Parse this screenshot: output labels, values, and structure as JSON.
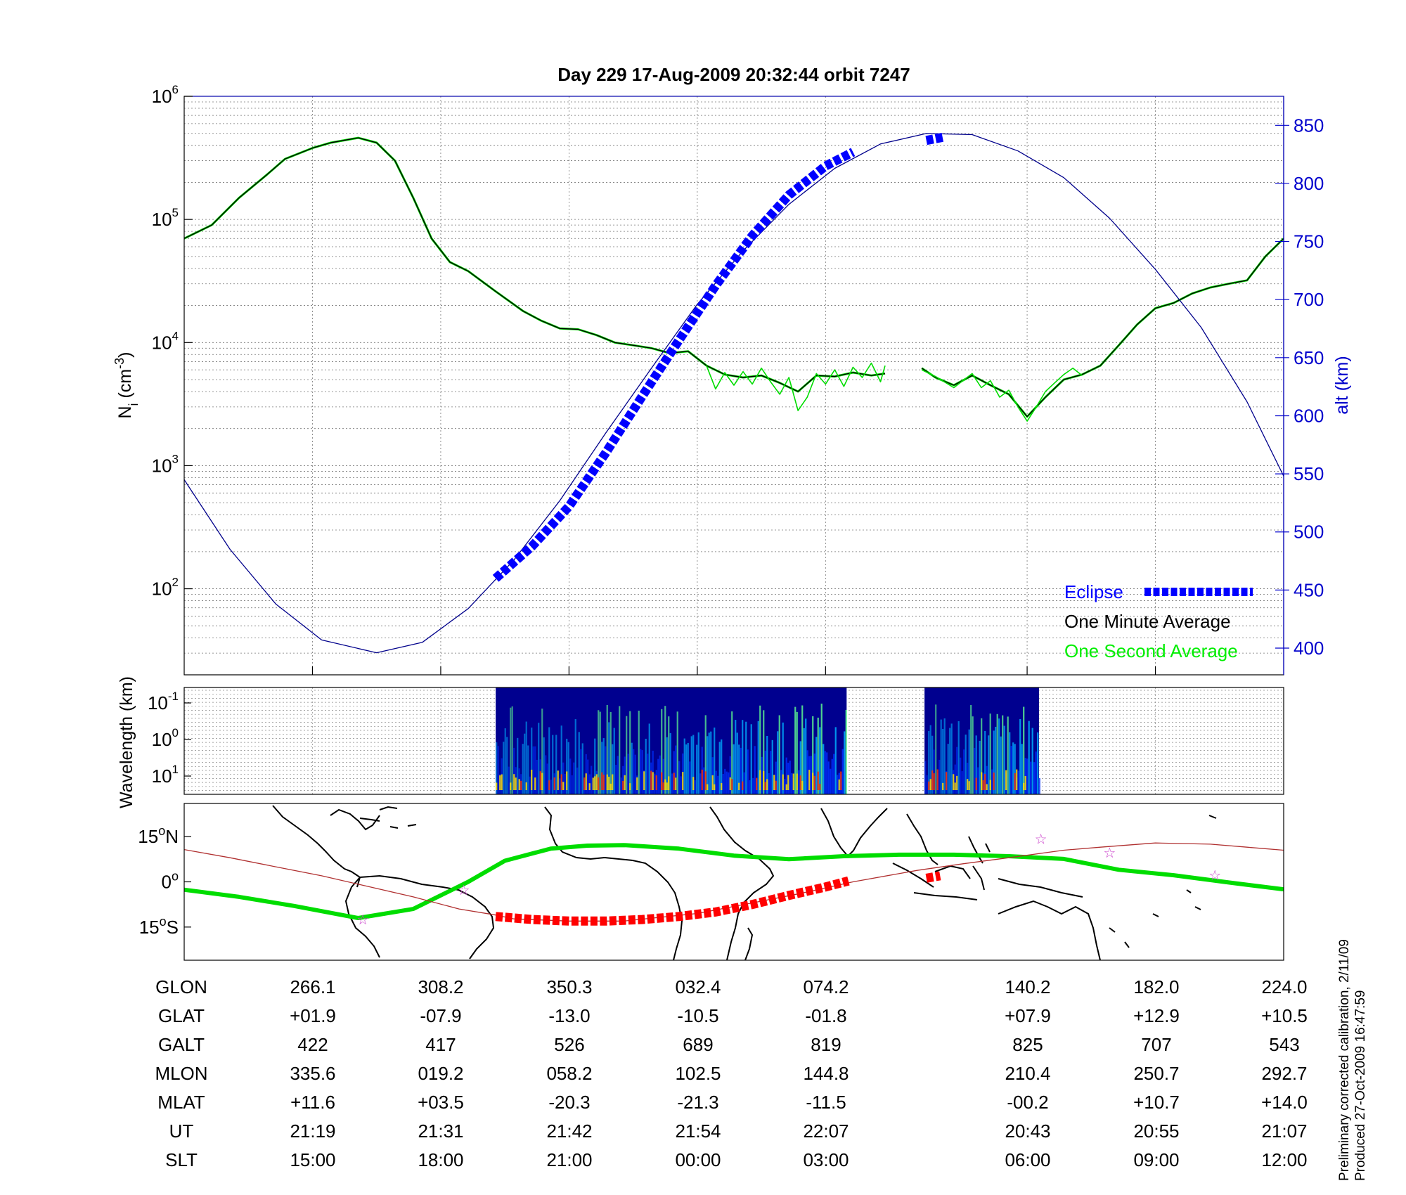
{
  "title": "Day 229  17-Aug-2009 20:32:44   orbit 7247",
  "side_note": {
    "line1": "Preliminary corrected calibration, 2/11/09",
    "line2": "Produced 27-Oct-2009 16:47:59"
  },
  "chart_data": [
    {
      "type": "line",
      "panel": "density",
      "ylabel_left": "N",
      "ylabel_left_sub": "i",
      "ylabel_left_unit": "(cm",
      "ylabel_left_unit_sup": "-3",
      "ylabel_left_close": ")",
      "ylabel_right": "alt (km)",
      "y_scale": "log",
      "ylim": [
        20,
        1000000
      ],
      "y_ticks": [
        {
          "value": 100,
          "base": "10",
          "exp": "2"
        },
        {
          "value": 1000,
          "base": "10",
          "exp": "3"
        },
        {
          "value": 10000,
          "base": "10",
          "exp": "4"
        },
        {
          "value": 100000,
          "base": "10",
          "exp": "5"
        },
        {
          "value": 1000000,
          "base": "10",
          "exp": "6"
        }
      ],
      "y2lim": [
        377,
        875
      ],
      "y2_ticks": [
        "400",
        "450",
        "500",
        "550",
        "600",
        "650",
        "700",
        "750",
        "800",
        "850"
      ],
      "xlim": [
        0,
        120
      ],
      "x_ticks": [
        14,
        28,
        42,
        56,
        70,
        92,
        106
      ],
      "grid": true,
      "legend_placement": "bottom-right",
      "legend": [
        {
          "label": "Eclipse",
          "color": "#0000ff"
        },
        {
          "label": "One Minute Average",
          "color": "#000000"
        },
        {
          "label": "One Second Average",
          "color": "#00ee00"
        }
      ],
      "colors": {
        "altitude": "#00008b",
        "eclipse": "#0000ff",
        "minute": "#000000",
        "second": "#00dd00",
        "axis_right": "#0000cc"
      },
      "series": [
        {
          "name": "One Minute Average",
          "points": [
            [
              0,
              70000
            ],
            [
              3,
              90000
            ],
            [
              6,
              150000
            ],
            [
              9,
              230000
            ],
            [
              11,
              310000
            ],
            [
              14,
              380000
            ],
            [
              16,
              420000
            ],
            [
              19,
              460000
            ],
            [
              21,
              420000
            ],
            [
              23,
              300000
            ],
            [
              25,
              150000
            ],
            [
              27,
              70000
            ],
            [
              29,
              45000
            ],
            [
              31,
              38000
            ],
            [
              34,
              26000
            ],
            [
              37,
              18000
            ],
            [
              39,
              15000
            ],
            [
              41,
              13000
            ],
            [
              43,
              12800
            ],
            [
              45,
              11500
            ],
            [
              47,
              10000
            ],
            [
              49,
              9500
            ],
            [
              51,
              9000
            ],
            [
              53,
              8200
            ],
            [
              55,
              8500
            ],
            [
              57,
              6500
            ],
            [
              59,
              5500
            ],
            [
              61,
              5200
            ],
            [
              63,
              5400
            ],
            [
              65,
              4700
            ],
            [
              67,
              4000
            ],
            [
              69,
              5400
            ],
            [
              71,
              5300
            ],
            [
              73,
              5700
            ],
            [
              75,
              5400
            ],
            [
              76.5,
              5600
            ]
          ]
        },
        {
          "name": "One Minute Average",
          "points": [
            [
              80.5,
              6200
            ],
            [
              82,
              5200
            ],
            [
              84,
              4500
            ],
            [
              86,
              5400
            ],
            [
              88,
              4500
            ],
            [
              90,
              3800
            ],
            [
              92,
              2500
            ],
            [
              94,
              3600
            ],
            [
              96,
              5000
            ],
            [
              98,
              5500
            ],
            [
              100,
              6500
            ],
            [
              102,
              9500
            ],
            [
              104,
              14000
            ],
            [
              106,
              19000
            ],
            [
              108,
              21000
            ],
            [
              110,
              25000
            ],
            [
              112,
              28000
            ],
            [
              114,
              30000
            ],
            [
              116,
              32000
            ],
            [
              118,
              50000
            ],
            [
              120,
              70000
            ]
          ]
        },
        {
          "name": "One Second Average",
          "points": [
            [
              57,
              6500
            ],
            [
              58,
              4200
            ],
            [
              59,
              5700
            ],
            [
              60,
              4500
            ],
            [
              61,
              5800
            ],
            [
              62,
              4600
            ],
            [
              63,
              6200
            ],
            [
              64,
              4800
            ],
            [
              65,
              3800
            ],
            [
              66,
              5200
            ],
            [
              67,
              2800
            ],
            [
              68,
              3600
            ],
            [
              69,
              5600
            ],
            [
              70,
              4600
            ],
            [
              71,
              6000
            ],
            [
              72,
              4400
            ],
            [
              73,
              6300
            ],
            [
              74,
              5200
            ],
            [
              75,
              6800
            ],
            [
              76,
              4800
            ],
            [
              76.5,
              6500
            ]
          ]
        },
        {
          "name": "One Second Average",
          "points": [
            [
              80.5,
              6000
            ],
            [
              82,
              5300
            ],
            [
              84,
              4300
            ],
            [
              86,
              5600
            ],
            [
              87,
              4300
            ],
            [
              88,
              4900
            ],
            [
              89,
              3600
            ],
            [
              90,
              4100
            ],
            [
              91,
              3000
            ],
            [
              92,
              2300
            ],
            [
              93,
              3000
            ],
            [
              94,
              4000
            ],
            [
              95,
              4700
            ],
            [
              96,
              5500
            ],
            [
              97,
              6200
            ],
            [
              98,
              5400
            ]
          ]
        },
        {
          "name": "altitude",
          "axis": "right",
          "points": [
            [
              0,
              545
            ],
            [
              5,
              485
            ],
            [
              10,
              438
            ],
            [
              15,
              407
            ],
            [
              21,
              396
            ],
            [
              26,
              405
            ],
            [
              31,
              434
            ],
            [
              36,
              476
            ],
            [
              41,
              527
            ],
            [
              46,
              585
            ],
            [
              51,
              641
            ],
            [
              56,
              696
            ],
            [
              61,
              742
            ],
            [
              66,
              782
            ],
            [
              71,
              813
            ],
            [
              76,
              834
            ],
            [
              81,
              843
            ],
            [
              86,
              842
            ],
            [
              91,
              828
            ],
            [
              96,
              805
            ],
            [
              101,
              770
            ],
            [
              106,
              726
            ],
            [
              111,
              676
            ],
            [
              116,
              612
            ],
            [
              120,
              548
            ]
          ]
        },
        {
          "name": "Eclipse",
          "axis": "right",
          "points": [
            [
              34,
              460
            ],
            [
              38,
              488
            ],
            [
              42,
              522
            ],
            [
              46,
              568
            ],
            [
              50,
              617
            ],
            [
              54,
              665
            ],
            [
              58,
              712
            ],
            [
              62,
              755
            ],
            [
              66,
              790
            ],
            [
              70,
              815
            ],
            [
              73,
              827
            ]
          ]
        },
        {
          "name": "Eclipse",
          "axis": "right",
          "points": [
            [
              81,
              837
            ],
            [
              83,
              840
            ]
          ]
        }
      ]
    },
    {
      "type": "heatmap",
      "panel": "spectrogram",
      "ylabel": "Wavelength (km)",
      "y_ticks": [
        {
          "base": "10",
          "exp": "-1"
        },
        {
          "base": "10",
          "exp": "0"
        },
        {
          "base": "10",
          "exp": "1"
        }
      ],
      "data_intervals": [
        [
          34,
          72.3
        ],
        [
          80.8,
          93.3
        ]
      ],
      "colormap": [
        "#00008f",
        "#0030ff",
        "#00b0ff",
        "#60ff90",
        "#ffe000",
        "#ff3000"
      ]
    },
    {
      "type": "line",
      "panel": "map",
      "y_ticks": [
        {
          "label": "15",
          "deg": "o",
          "hemi": "N",
          "lat": 15
        },
        {
          "label": "0",
          "deg": "o",
          "hemi": "",
          "lat": 0
        },
        {
          "label": "15",
          "deg": "o",
          "hemi": "S",
          "lat": -15
        }
      ],
      "ylim": [
        -26,
        26
      ],
      "colors": {
        "dip_equator": "#00dd00",
        "track": "#b03030",
        "eclipse_track": "#ff0000",
        "stars": "#cc44cc"
      },
      "series": [
        {
          "name": "dip-equator",
          "points": [
            [
              0,
              -2.6
            ],
            [
              6,
              -5
            ],
            [
              12,
              -8
            ],
            [
              19,
              -12
            ],
            [
              25,
              -9
            ],
            [
              31,
              0
            ],
            [
              35,
              7
            ],
            [
              40,
              11
            ],
            [
              44,
              12
            ],
            [
              48,
              12.2
            ],
            [
              54,
              11
            ],
            [
              60,
              8.7
            ],
            [
              66,
              7.5
            ],
            [
              72,
              8.5
            ],
            [
              78,
              9
            ],
            [
              84,
              9
            ],
            [
              90,
              8.5
            ],
            [
              96,
              7.6
            ],
            [
              102,
              4
            ],
            [
              108,
              2.2
            ],
            [
              114,
              -0.2
            ],
            [
              120,
              -2.5
            ]
          ]
        },
        {
          "name": "track",
          "points": [
            [
              0,
              10.7
            ],
            [
              5,
              8
            ],
            [
              10,
              5
            ],
            [
              15,
              2
            ],
            [
              20,
              -1.5
            ],
            [
              25,
              -5
            ],
            [
              30,
              -9
            ],
            [
              34,
              -11
            ],
            [
              36,
              -12.3
            ],
            [
              42,
              -13
            ],
            [
              48,
              -13
            ],
            [
              56,
              -10.5
            ],
            [
              62,
              -7
            ],
            [
              67,
              -4
            ],
            [
              73,
              0
            ],
            [
              80,
              3.8
            ],
            [
              85,
              6
            ],
            [
              90,
              8
            ],
            [
              96,
              10.5
            ],
            [
              100,
              11.5
            ],
            [
              106,
              12.9
            ],
            [
              112,
              12.5
            ],
            [
              116,
              11.5
            ],
            [
              120,
              10.5
            ]
          ]
        },
        {
          "name": "eclipse-track",
          "points": [
            [
              34,
              -11.5
            ],
            [
              38,
              -12.5
            ],
            [
              42,
              -13
            ],
            [
              46,
              -13
            ],
            [
              50,
              -12.5
            ],
            [
              54,
              -11.5
            ],
            [
              58,
              -10
            ],
            [
              62,
              -7.5
            ],
            [
              66,
              -4.5
            ],
            [
              70,
              -1.7
            ],
            [
              72.5,
              0.3
            ]
          ]
        },
        {
          "name": "eclipse-track-2",
          "points": [
            [
              81,
              1.2
            ],
            [
              82.5,
              2
            ]
          ]
        }
      ],
      "stars": [
        [
          19.5,
          -12.3
        ],
        [
          30.5,
          -2.5
        ],
        [
          93.5,
          14.4
        ],
        [
          101,
          9.9
        ],
        [
          112.5,
          2.4
        ]
      ]
    }
  ],
  "table": {
    "rows": [
      {
        "label": "GLON",
        "values": [
          "266.1",
          "308.2",
          "350.3",
          "032.4",
          "074.2",
          "140.2",
          "182.0",
          "224.0"
        ]
      },
      {
        "label": "GLAT",
        "values": [
          "+01.9",
          "-07.9",
          "-13.0",
          "-10.5",
          "-01.8",
          "+07.9",
          "+12.9",
          "+10.5"
        ]
      },
      {
        "label": "GALT",
        "values": [
          "422",
          "417",
          "526",
          "689",
          "819",
          "825",
          "707",
          "543"
        ]
      },
      {
        "label": "MLON",
        "values": [
          "335.6",
          "019.2",
          "058.2",
          "102.5",
          "144.8",
          "210.4",
          "250.7",
          "292.7"
        ]
      },
      {
        "label": "MLAT",
        "values": [
          "+11.6",
          "+03.5",
          "-20.3",
          "-21.3",
          "-11.5",
          "-00.2",
          "+10.7",
          "+14.0"
        ]
      },
      {
        "label": "UT",
        "values": [
          "21:19",
          "21:31",
          "21:42",
          "21:54",
          "22:07",
          "20:43",
          "20:55",
          "21:07"
        ]
      },
      {
        "label": "SLT",
        "values": [
          "15:00",
          "18:00",
          "21:00",
          "00:00",
          "03:00",
          "06:00",
          "09:00",
          "12:00"
        ]
      }
    ]
  }
}
